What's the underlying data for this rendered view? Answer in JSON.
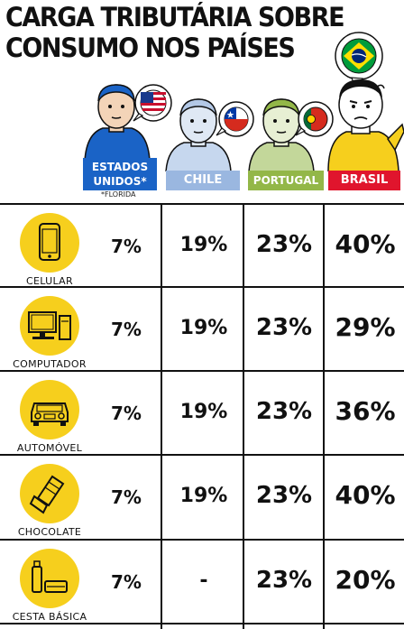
{
  "title": {
    "line1": "CARGA TRIBUTÁRIA SOBRE",
    "line2": "CONSUMO NOS PAÍSES"
  },
  "countries": {
    "usa": "ESTADOS UNIDOS*",
    "usa_note": "*FLORIDA",
    "chile": "CHILE",
    "portugal": "PORTUGAL",
    "brasil": "BRASIL"
  },
  "colors": {
    "usa": "#1a63c6",
    "chile": "#9ab7e0",
    "portugal": "#93b748",
    "brasil": "#e0152d",
    "icon_bg": "#f6cf1d"
  },
  "rows": [
    {
      "item": "CELULAR",
      "icon": "phone-icon",
      "usa": "7%",
      "chile": "19%",
      "portugal": "23%",
      "brasil": "40%"
    },
    {
      "item": "COMPUTADOR",
      "icon": "computer-icon",
      "usa": "7%",
      "chile": "19%",
      "portugal": "23%",
      "brasil": "29%"
    },
    {
      "item": "AUTOMÓVEL",
      "icon": "car-icon",
      "usa": "7%",
      "chile": "19%",
      "portugal": "23%",
      "brasil": "36%"
    },
    {
      "item": "CHOCOLATE",
      "icon": "chocolate-icon",
      "usa": "7%",
      "chile": "19%",
      "portugal": "23%",
      "brasil": "40%"
    },
    {
      "item": "CESTA BÁSICA",
      "icon": "basket-icon",
      "usa": "7%",
      "chile": "-",
      "portugal": "23%",
      "brasil": "20%"
    }
  ]
}
